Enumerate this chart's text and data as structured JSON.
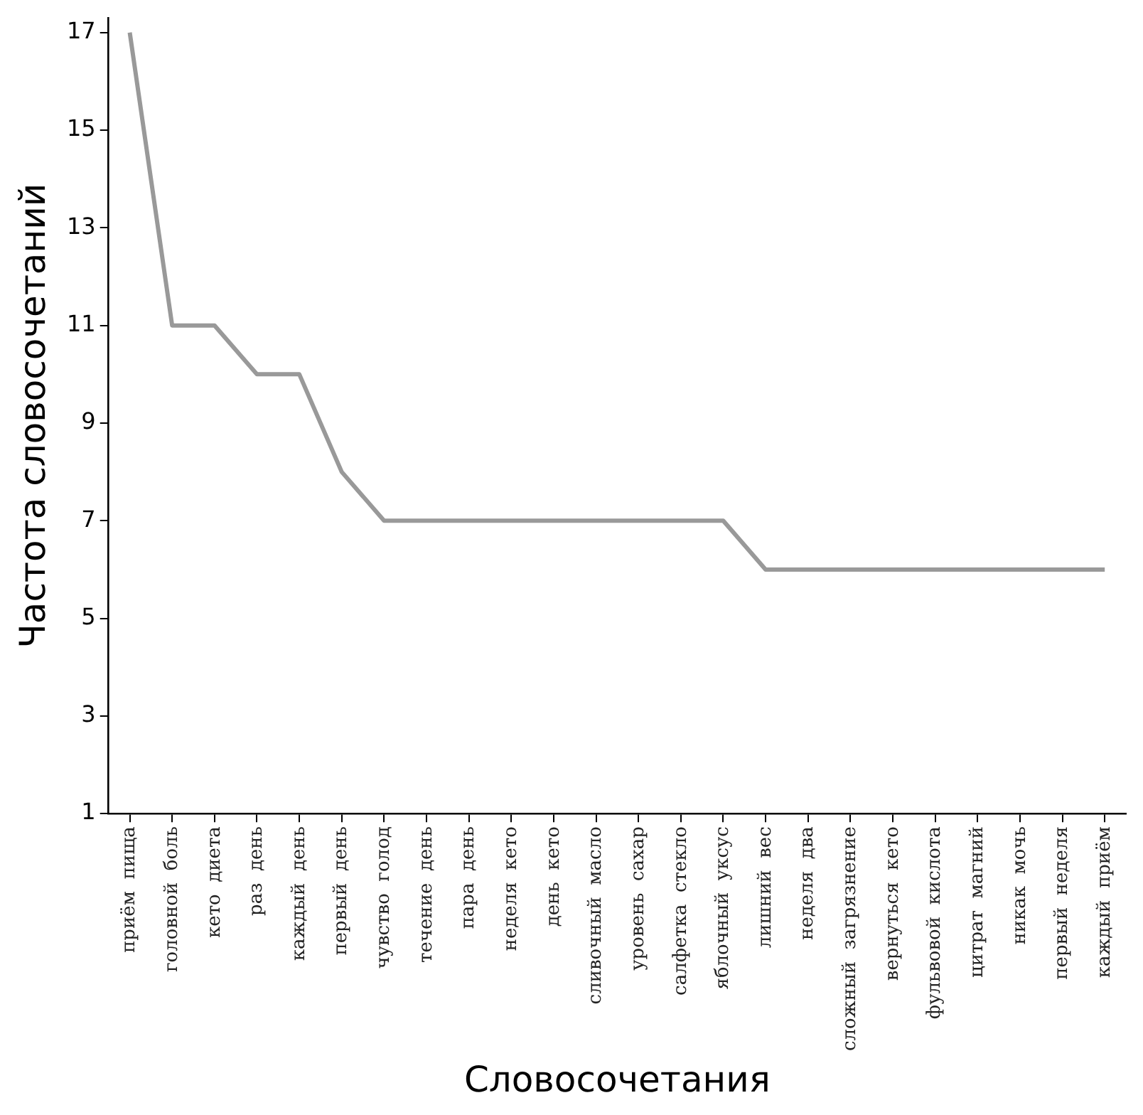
{
  "chart_data": {
    "type": "line",
    "xlabel": "Словосочетания",
    "ylabel": "Частота словосочетаний",
    "categories": [
      "приём  пища",
      "головной  боль",
      "кето  диета",
      "раз  день",
      "каждый  день",
      "первый  день",
      "чувство  голод",
      "течение  день",
      "пара  день",
      "неделя  кето",
      "день  кето",
      "сливочный  масло",
      "уровень  сахар",
      "салфетка  стекло",
      "яблочный  уксус",
      "лишний  вес",
      "неделя  два",
      "сложный  загрязнение",
      "вернуться  кето",
      "фульвовой  кислота",
      "цитрат  магний",
      "никак  мочь",
      "первый  неделя",
      "каждый  приём"
    ],
    "series": [
      {
        "color": "#999999",
        "values": [
          17,
          11,
          11,
          10,
          10,
          8,
          7,
          7,
          7,
          7,
          7,
          7,
          7,
          7,
          7,
          6,
          6,
          6,
          6,
          6,
          6,
          6,
          6,
          6
        ]
      }
    ],
    "ylim": [
      1,
      17.3
    ],
    "yticks": [
      1,
      3,
      5,
      7,
      9,
      11,
      13,
      15,
      17
    ],
    "grid": false,
    "legend": false,
    "marker": "none",
    "line_style": "solid"
  }
}
